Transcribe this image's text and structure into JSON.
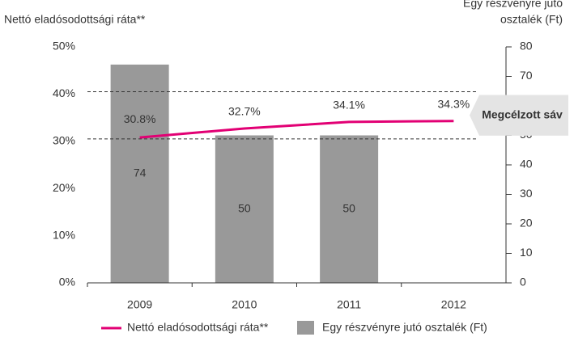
{
  "chart_data": {
    "type": "bar_line",
    "y_label": "Nettó eladósodottsági ráta**",
    "y2_label_lines": [
      "Egy részvényre jutó",
      "osztalék (Ft)"
    ],
    "categories": [
      "2009",
      "2010",
      "2011",
      "2012"
    ],
    "series": [
      {
        "name": "Nettó eladósodottsági ráta**",
        "type": "line",
        "color": "#e20074",
        "values": [
          30.8,
          32.7,
          34.1,
          34.3
        ],
        "value_labels": [
          "30.8%",
          "32.7%",
          "34.1%",
          "34.3%"
        ]
      },
      {
        "name": "Egy részvényre jutó osztalék (Ft)",
        "type": "bar",
        "axis": "y2",
        "color": "#999999",
        "values": [
          74,
          50,
          50,
          null
        ]
      }
    ],
    "target_band": {
      "label": "Megcélzott sáv",
      "range": [
        30.5,
        40.5
      ]
    },
    "ylim": [
      0,
      50
    ],
    "yticks": [
      {
        "value": 0,
        "label": "0%"
      },
      {
        "value": 10,
        "label": "10%"
      },
      {
        "value": 20,
        "label": "20%"
      },
      {
        "value": 30,
        "label": "30%"
      },
      {
        "value": 40,
        "label": "40%"
      },
      {
        "value": 50,
        "label": "50%"
      }
    ],
    "y2lim": [
      0,
      80
    ],
    "y2ticks": [
      0,
      10,
      20,
      30,
      40,
      50,
      60,
      70,
      80
    ]
  }
}
